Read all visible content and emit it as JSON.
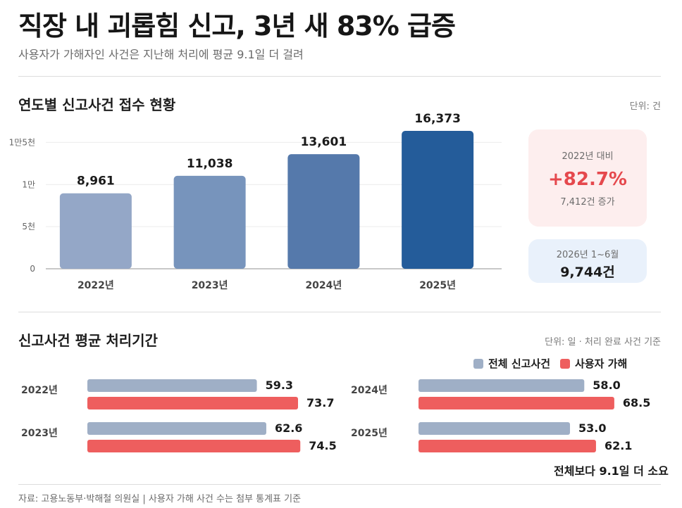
{
  "header": {
    "title": "직장 내 괴롭힘 신고, 3년 새 83% 급증",
    "subtitle": "사용자가 가해자인 사건은 지난해 처리에 평균 9.1일 더 걸려"
  },
  "colors": {
    "bar_2022": "#94a7c7",
    "bar_2023": "#7794bc",
    "bar_2024": "#5579ab",
    "bar_2025": "#245c9a",
    "series_all": "#9fafc6",
    "series_employer": "#ee5e5e",
    "accent_red": "#e5484d"
  },
  "chart_data": [
    {
      "type": "bar",
      "title": "연도별 신고사건 접수 현황",
      "unit_label": "단위: 건",
      "categories": [
        "2022년",
        "2023년",
        "2024년",
        "2025년"
      ],
      "values": [
        8961,
        11038,
        13601,
        16373
      ],
      "value_labels": [
        "8,961",
        "11,038",
        "13,601",
        "16,373"
      ],
      "ylim": [
        0,
        16373
      ],
      "yticks": [
        {
          "value": 0,
          "label": "0"
        },
        {
          "value": 5000,
          "label": "5천"
        },
        {
          "value": 10000,
          "label": "1만"
        },
        {
          "value": 15000,
          "label": "1만5천"
        }
      ],
      "grid": true
    },
    {
      "type": "bar",
      "orientation": "horizontal",
      "title": "신고사건 평균 처리기간",
      "unit_label": "단위: 일 · 처리 완료 사건 기준",
      "categories": [
        "2022년",
        "2023년",
        "2024년",
        "2025년"
      ],
      "series": [
        {
          "name": "전체 신고사건",
          "values": [
            59.3,
            62.6,
            58.0,
            53.0
          ],
          "labels": [
            "59.3",
            "62.6",
            "58.0",
            "53.0"
          ]
        },
        {
          "name": "사용자 가해",
          "values": [
            73.7,
            74.5,
            68.5,
            62.1
          ],
          "labels": [
            "73.7",
            "74.5",
            "68.5",
            "62.1"
          ]
        }
      ],
      "xlim": [
        0,
        90
      ],
      "legend": "top-right",
      "annotation": "전체보다 9.1일 더 소요"
    }
  ],
  "cards": {
    "increase": {
      "label": "2022년 대비",
      "value": "+82.7%",
      "detail": "7,412건 증가"
    },
    "recent": {
      "label": "2026년 1~6월",
      "value": "9,744건"
    }
  },
  "footer": {
    "source": "자료: 고용노동부·박해철 의원실 | 사용자 가해 사건 수는 첨부 통계표 기준"
  }
}
